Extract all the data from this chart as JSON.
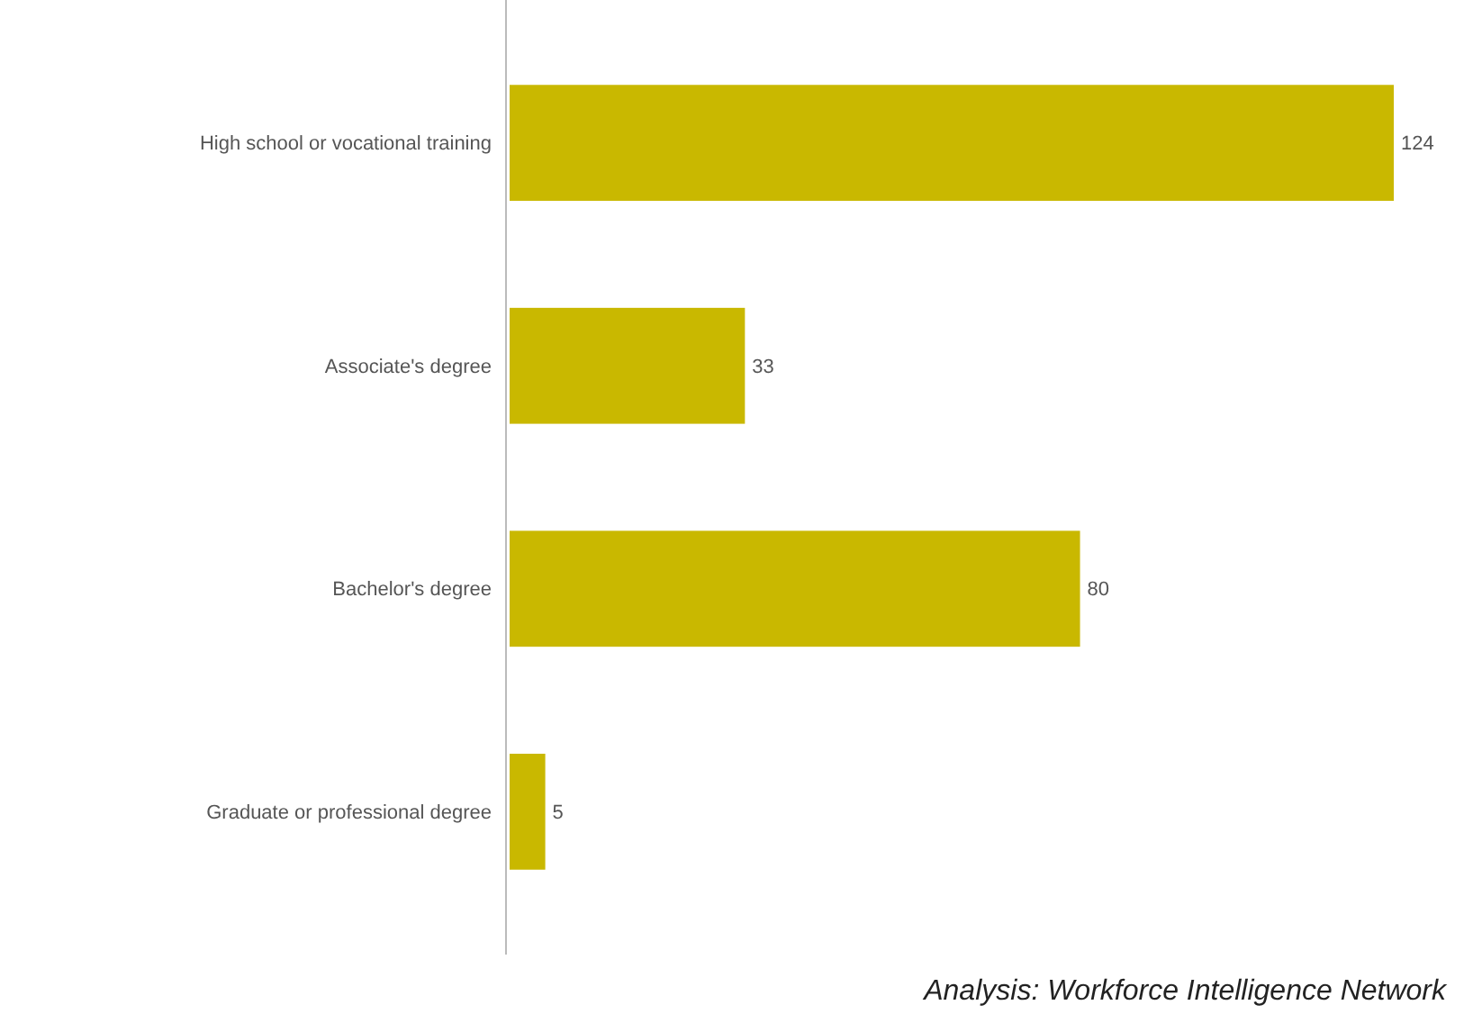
{
  "chart_data": {
    "type": "bar",
    "orientation": "horizontal",
    "categories": [
      "High school or vocational training",
      "Associate's degree",
      "Bachelor's degree",
      "Graduate or professional degree"
    ],
    "values": [
      124,
      33,
      80,
      5
    ],
    "color": "#c9b800",
    "data_labels": true,
    "annotations": [
      "Analysis: Workforce Intelligence Network"
    ]
  }
}
